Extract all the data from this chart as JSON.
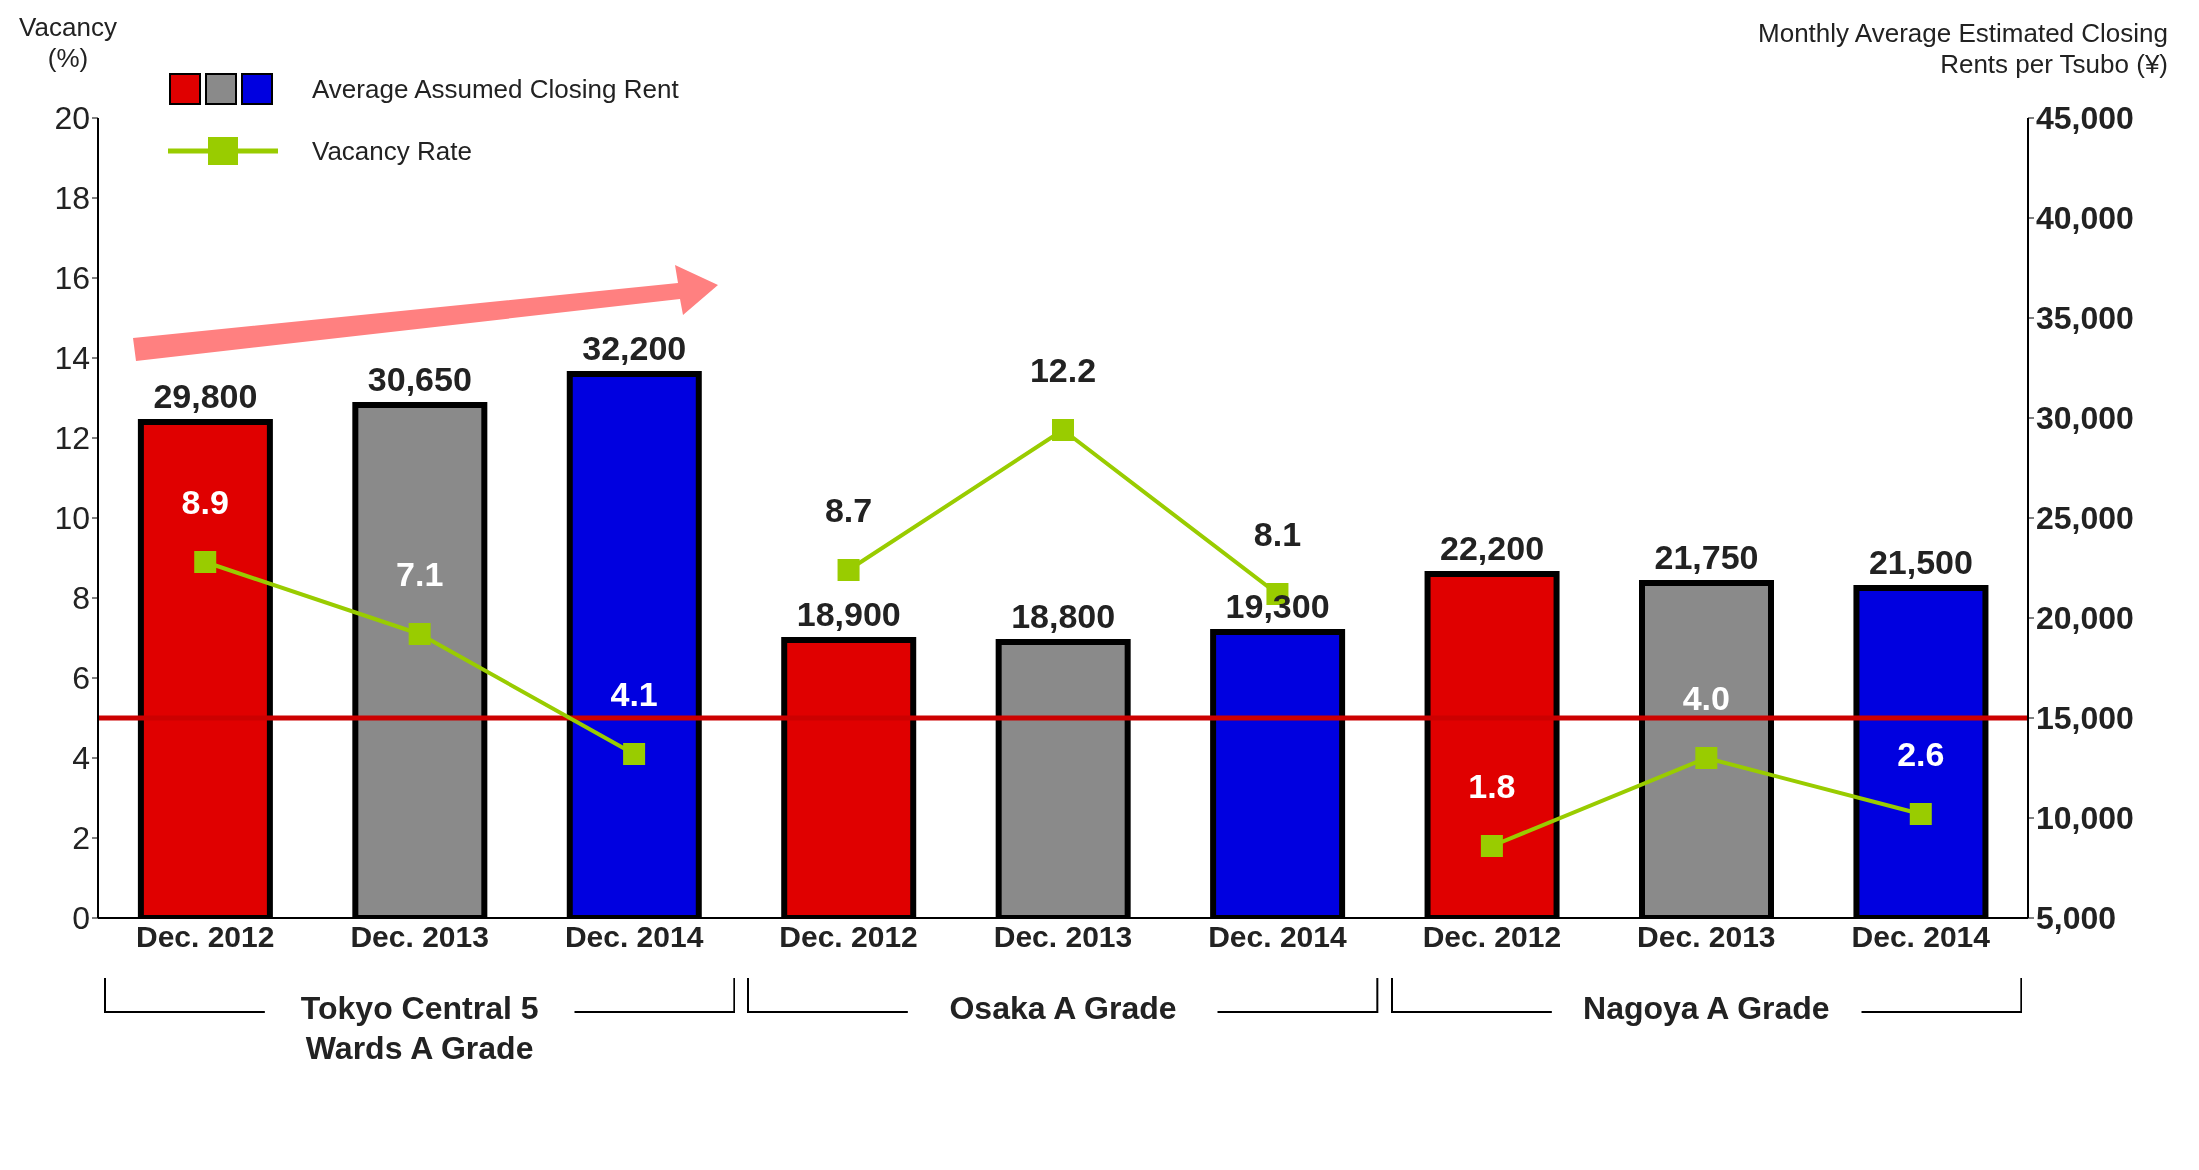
{
  "chart_data": {
    "type": "bar",
    "categories": [
      "Dec. 2012",
      "Dec. 2013",
      "Dec. 2014",
      "Dec. 2012",
      "Dec. 2013",
      "Dec. 2014",
      "Dec. 2012",
      "Dec. 2013",
      "Dec. 2014"
    ],
    "ylabel": "Vacancy (%)",
    "y2label": "Monthly Average Estimated Closing Rents per Tsubo (¥)",
    "series": [
      {
        "name": "Average Assumed Closing Rent",
        "axis": "y2",
        "colors": [
          "#e00000",
          "#8a8a8a",
          "#0000e0",
          "#e00000",
          "#8a8a8a",
          "#0000e0",
          "#e00000",
          "#8a8a8a",
          "#0000e0"
        ],
        "values": [
          29800,
          30650,
          32200,
          18900,
          18800,
          19300,
          22200,
          21750,
          21500
        ],
        "value_labels": [
          "29,800",
          "30,650",
          "32,200",
          "18,900",
          "18,800",
          "19,300",
          "22,200",
          "21,750",
          "21,500"
        ]
      },
      {
        "name": "Vacancy Rate",
        "type": "line",
        "color": "#99cc00",
        "values": [
          8.9,
          7.1,
          4.1,
          null,
          null,
          null,
          null,
          null,
          null
        ],
        "value_labels": [
          "8.9",
          "7.1",
          "4.1",
          null,
          null,
          null,
          null,
          null,
          null
        ]
      },
      {
        "type": "line",
        "color": "#99cc00",
        "values": [
          null,
          null,
          null,
          8.7,
          12.2,
          8.1,
          null,
          null,
          null
        ],
        "value_labels": [
          null,
          null,
          null,
          "8.7",
          "12.2",
          "8.1",
          null,
          null,
          null
        ]
      },
      {
        "type": "line",
        "color": "#99cc00",
        "values": [
          null,
          null,
          null,
          null,
          null,
          null,
          1.8,
          4.0,
          2.6
        ],
        "value_labels": [
          null,
          null,
          null,
          null,
          null,
          null,
          "1.8",
          "4.0",
          "2.6"
        ]
      }
    ],
    "ylim": [
      0,
      20
    ],
    "yticks": [
      0,
      2,
      4,
      6,
      8,
      10,
      12,
      14,
      16,
      18,
      20
    ],
    "y2lim": [
      5000,
      45000
    ],
    "y2ticks": [
      {
        "value": 5000,
        "label": "5,000"
      },
      {
        "value": 10000,
        "label": "10,000"
      },
      {
        "value": 15000,
        "label": "15,000"
      },
      {
        "value": 20000,
        "label": "20,000"
      },
      {
        "value": 25000,
        "label": "25,000"
      },
      {
        "value": 30000,
        "label": "30,000"
      },
      {
        "value": 35000,
        "label": "35,000"
      },
      {
        "value": 40000,
        "label": "40,000"
      },
      {
        "value": 45000,
        "label": "45,000"
      }
    ],
    "ref_lines": [
      {
        "axis": "y",
        "value": 5,
        "color": "#cc0000"
      }
    ],
    "annotations": [
      "Tokyo Central 5 Wards A Grade",
      "Osaka A Grade",
      "Nagoya A Grade"
    ],
    "marker": "square",
    "legend": "top left",
    "grid": false
  }
}
